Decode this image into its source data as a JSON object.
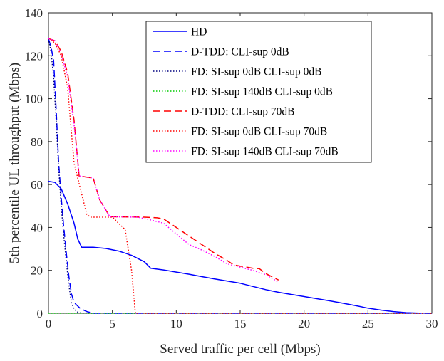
{
  "chart_data": {
    "type": "line",
    "title": "",
    "xlabel": "Served traffic per cell (Mbps)",
    "ylabel": "5th percentile UL throughput (Mbps)",
    "xlim": [
      0,
      30
    ],
    "ylim": [
      0,
      140
    ],
    "xticks": [
      0,
      5,
      10,
      15,
      20,
      25,
      30
    ],
    "yticks": [
      0,
      20,
      40,
      60,
      80,
      100,
      120,
      140
    ],
    "grid": false,
    "legend_position": "top-right",
    "series": [
      {
        "name": "HD",
        "color": "#0000ff",
        "style": "solid",
        "points": [
          [
            0,
            61.5
          ],
          [
            0.5,
            61
          ],
          [
            1,
            58
          ],
          [
            1.5,
            51
          ],
          [
            2,
            42
          ],
          [
            2.3,
            34.5
          ],
          [
            2.6,
            30.8
          ],
          [
            3.5,
            30.8
          ],
          [
            4.5,
            30.2
          ],
          [
            5.5,
            29
          ],
          [
            6.5,
            27
          ],
          [
            7.5,
            24
          ],
          [
            8,
            21
          ],
          [
            9,
            20.2
          ],
          [
            10,
            19.2
          ],
          [
            11,
            18.2
          ],
          [
            12,
            17.1
          ],
          [
            13,
            16
          ],
          [
            14,
            15
          ],
          [
            15,
            14
          ],
          [
            16,
            12.5
          ],
          [
            17,
            11
          ],
          [
            18,
            9.8
          ],
          [
            19,
            8.8
          ],
          [
            20,
            7.8
          ],
          [
            21,
            6.8
          ],
          [
            22,
            5.8
          ],
          [
            23,
            4.7
          ],
          [
            24,
            3.6
          ],
          [
            25,
            2.4
          ],
          [
            26,
            1.5
          ],
          [
            27,
            0.8
          ],
          [
            28,
            0.3
          ],
          [
            29,
            0.1
          ],
          [
            30,
            0
          ]
        ]
      },
      {
        "name": "D-TDD: CLI-sup 0dB",
        "color": "#0000ff",
        "style": "dashed",
        "points": [
          [
            0,
            128
          ],
          [
            0.2,
            124
          ],
          [
            0.4,
            118
          ],
          [
            0.6,
            95
          ],
          [
            0.8,
            70
          ],
          [
            1,
            54
          ],
          [
            1.2,
            40
          ],
          [
            1.4,
            28
          ],
          [
            1.6,
            17
          ],
          [
            1.8,
            9
          ],
          [
            2,
            5
          ],
          [
            2.5,
            2.2
          ],
          [
            3,
            0.8
          ],
          [
            3.5,
            0
          ],
          [
            30,
            0
          ]
        ]
      },
      {
        "name": "FD: SI-sup 0dB CLI-sup 0dB",
        "color": "#000080",
        "style": "dotted",
        "points": [
          [
            0,
            128
          ],
          [
            0.2,
            122
          ],
          [
            0.4,
            110
          ],
          [
            0.6,
            90
          ],
          [
            0.8,
            68
          ],
          [
            1,
            50
          ],
          [
            1.2,
            36
          ],
          [
            1.4,
            24
          ],
          [
            1.6,
            13
          ],
          [
            1.8,
            5
          ],
          [
            2,
            2
          ],
          [
            2.3,
            0.5
          ],
          [
            2.6,
            0
          ],
          [
            30,
            0
          ]
        ]
      },
      {
        "name": "FD: SI-sup 140dB CLI-sup 0dB",
        "color": "#00cc00",
        "style": "dotted",
        "points": [
          [
            0,
            0
          ],
          [
            30,
            0
          ]
        ]
      },
      {
        "name": "D-TDD: CLI-sup 70dB",
        "color": "#ff0000",
        "style": "dashed",
        "points": [
          [
            0,
            128
          ],
          [
            0.5,
            127
          ],
          [
            1,
            122
          ],
          [
            1.5,
            112
          ],
          [
            2,
            90
          ],
          [
            2.4,
            64
          ],
          [
            3.5,
            63
          ],
          [
            4,
            53
          ],
          [
            4.8,
            45
          ],
          [
            7.5,
            44.8
          ],
          [
            8.5,
            44.5
          ],
          [
            9,
            44
          ],
          [
            10,
            40
          ],
          [
            11,
            36
          ],
          [
            12,
            32
          ],
          [
            13,
            28
          ],
          [
            14,
            24.5
          ],
          [
            14.5,
            22.5
          ],
          [
            15,
            22
          ],
          [
            16,
            21
          ],
          [
            16.5,
            20.8
          ],
          [
            17,
            18.5
          ],
          [
            18,
            15.5
          ]
        ]
      },
      {
        "name": "FD: SI-sup 0dB CLI-sup 70dB",
        "color": "#ff0000",
        "style": "dotted",
        "points": [
          [
            0,
            128
          ],
          [
            0.5,
            126
          ],
          [
            1,
            120
          ],
          [
            1.5,
            105
          ],
          [
            2,
            70
          ],
          [
            2.5,
            58
          ],
          [
            3,
            46
          ],
          [
            3.3,
            44.8
          ],
          [
            5,
            44.8
          ],
          [
            6,
            39
          ],
          [
            6.5,
            20
          ],
          [
            6.8,
            0
          ],
          [
            30,
            0
          ]
        ]
      },
      {
        "name": "FD: SI-sup 140dB CLI-sup 70dB",
        "color": "#ff00ff",
        "style": "dotted",
        "points": [
          [
            0,
            128
          ],
          [
            0.5,
            127
          ],
          [
            1,
            121
          ],
          [
            1.5,
            110
          ],
          [
            2,
            88
          ],
          [
            2.4,
            64
          ],
          [
            3.5,
            63
          ],
          [
            4,
            53
          ],
          [
            4.8,
            45
          ],
          [
            7,
            44.8
          ],
          [
            8,
            43.5
          ],
          [
            9,
            42
          ],
          [
            10,
            37
          ],
          [
            11,
            32
          ],
          [
            12,
            29.5
          ],
          [
            13,
            26.5
          ],
          [
            14,
            23
          ],
          [
            15,
            21.5
          ],
          [
            16,
            20
          ],
          [
            17,
            18
          ],
          [
            18,
            14.5
          ]
        ]
      }
    ]
  }
}
